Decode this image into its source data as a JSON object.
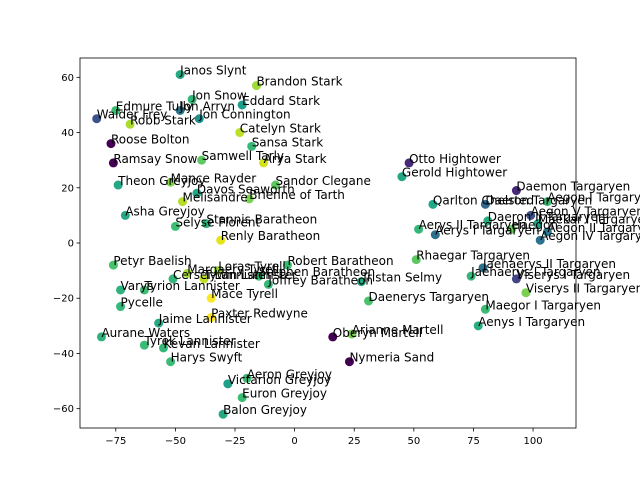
{
  "chart_data": {
    "type": "scatter",
    "title": "",
    "xlabel": "",
    "ylabel": "",
    "xlim": [
      -90,
      118
    ],
    "ylim": [
      -67,
      67
    ],
    "xticks": [
      -75,
      -50,
      -25,
      0,
      25,
      50,
      75,
      100
    ],
    "yticks": [
      -60,
      -40,
      -20,
      0,
      20,
      40,
      60
    ],
    "xtick_labels": [
      "−75",
      "−50",
      "−25",
      "0",
      "25",
      "50",
      "75",
      "100"
    ],
    "ytick_labels": [
      "−60",
      "−40",
      "−20",
      "0",
      "20",
      "40",
      "60"
    ],
    "grid": false,
    "points": [
      {
        "label": "Janos Slynt",
        "x": -48,
        "y": 61,
        "color": "#26a884"
      },
      {
        "label": "Brandon Stark",
        "x": -16,
        "y": 57,
        "color": "#a0da39"
      },
      {
        "label": "Jon Snow",
        "x": -43,
        "y": 52,
        "color": "#35b779"
      },
      {
        "label": "Eddard Stark",
        "x": -22,
        "y": 50,
        "color": "#1f9e89"
      },
      {
        "label": "Edmure Tully",
        "x": -75,
        "y": 48,
        "color": "#3dbc74"
      },
      {
        "label": "Jon Arryn",
        "x": -48,
        "y": 48,
        "color": "#2a788e"
      },
      {
        "label": "Walder Frey",
        "x": -83,
        "y": 45,
        "color": "#3b528b"
      },
      {
        "label": "Jon Connington",
        "x": -40,
        "y": 45,
        "color": "#21918c"
      },
      {
        "label": "Robb Stark",
        "x": -69,
        "y": 43,
        "color": "#addc30"
      },
      {
        "label": "Catelyn Stark",
        "x": -23,
        "y": 40,
        "color": "#bddf26"
      },
      {
        "label": "Roose Bolton",
        "x": -77,
        "y": 36,
        "color": "#440154"
      },
      {
        "label": "Sansa Stark",
        "x": -18,
        "y": 35,
        "color": "#35b779"
      },
      {
        "label": "Samwell Tarly",
        "x": -39,
        "y": 30,
        "color": "#5ec962"
      },
      {
        "label": "Otto Hightower",
        "x": 48,
        "y": 29,
        "color": "#482878"
      },
      {
        "label": "Ramsay Snow",
        "x": -76,
        "y": 29,
        "color": "#440154"
      },
      {
        "label": "Arya Stark",
        "x": -13,
        "y": 29,
        "color": "#d2e21b"
      },
      {
        "label": "Gerold Hightower",
        "x": 45,
        "y": 24,
        "color": "#22a884"
      },
      {
        "label": "Mance Rayder",
        "x": -52,
        "y": 22,
        "color": "#84d44b"
      },
      {
        "label": "Sandor Clegane",
        "x": -8,
        "y": 21,
        "color": "#5ec962"
      },
      {
        "label": "Theon Greyjoy",
        "x": -74,
        "y": 21,
        "color": "#22a884"
      },
      {
        "label": "Daemon Targaryen",
        "x": 93,
        "y": 19,
        "color": "#482878"
      },
      {
        "label": "Davos Seaworth",
        "x": -41,
        "y": 18,
        "color": "#22a884"
      },
      {
        "label": "Melisandre",
        "x": -47,
        "y": 15,
        "color": "#b5de2b"
      },
      {
        "label": "Brienne of Tarth",
        "x": -19,
        "y": 16,
        "color": "#7ad151"
      },
      {
        "label": "Qarlton Chelsted",
        "x": 58,
        "y": 14,
        "color": "#22a884"
      },
      {
        "label": "Daeron Targaryen",
        "x": 80,
        "y": 14,
        "color": "#31688e"
      },
      {
        "label": "Aegon I Targaryen",
        "x": 106,
        "y": 15,
        "color": "#3bbb75"
      },
      {
        "label": "Aegon V Targaryen",
        "x": 99,
        "y": 10,
        "color": "#3b528b"
      },
      {
        "label": "Asha Greyjoy",
        "x": -71,
        "y": 10,
        "color": "#26a884"
      },
      {
        "label": "Stannis Baratheon",
        "x": -37,
        "y": 7,
        "color": "#2fb47c"
      },
      {
        "label": "Daeron II Targaryen",
        "x": 81,
        "y": 8,
        "color": "#27ad81"
      },
      {
        "label": "Aerys II Targaryen",
        "x": 52,
        "y": 5,
        "color": "#35b779"
      },
      {
        "label": "Selyse Florent",
        "x": -50,
        "y": 6,
        "color": "#3dbc74"
      },
      {
        "label": "Maekar I Targaryen",
        "x": 102,
        "y": 7,
        "color": "#20a386"
      },
      {
        "label": "Aerys I Targaryen",
        "x": 59,
        "y": 3,
        "color": "#2d708e"
      },
      {
        "label": "Haegon",
        "x": 91,
        "y": 5,
        "color": "#65cb5e"
      },
      {
        "label": "Aegon II Targaryen",
        "x": 106,
        "y": 4,
        "color": "#2a788e"
      },
      {
        "label": "Aegon IV Targaryen",
        "x": 103,
        "y": 1,
        "color": "#2c728e"
      },
      {
        "label": "Renly Baratheon",
        "x": -31,
        "y": 1,
        "color": "#e5e419"
      },
      {
        "label": "Rhaegar Targaryen",
        "x": 51,
        "y": -6,
        "color": "#5ec962"
      },
      {
        "label": "Jaehaerys II Targaryen",
        "x": 79,
        "y": -9,
        "color": "#2c728e"
      },
      {
        "label": "Petyr Baelish",
        "x": -76,
        "y": -8,
        "color": "#4ac16d"
      },
      {
        "label": "Robert Baratheon",
        "x": -3,
        "y": -8,
        "color": "#3dbc74"
      },
      {
        "label": "Loras Tyrell",
        "x": -32,
        "y": -10,
        "color": "#9fda3a"
      },
      {
        "label": "Margaery Tyrell",
        "x": -45,
        "y": -11,
        "color": "#a5db36"
      },
      {
        "label": "Stephen Baratheon",
        "x": -15,
        "y": -12,
        "color": "#3bbb75"
      },
      {
        "label": "Jaehaerys I Targaryen",
        "x": 74,
        "y": -12,
        "color": "#35b779"
      },
      {
        "label": "Viserys I Targaryen",
        "x": 93,
        "y": -13,
        "color": "#414487"
      },
      {
        "label": "Cersei Lannister",
        "x": -51,
        "y": -13,
        "color": "#35b779"
      },
      {
        "label": "Tywin Lannister",
        "x": -38,
        "y": -13,
        "color": "#bddf26"
      },
      {
        "label": "Joffrey Baratheon",
        "x": -11,
        "y": -15,
        "color": "#35b779"
      },
      {
        "label": "Tristan Selmy",
        "x": 28,
        "y": -14,
        "color": "#26a884"
      },
      {
        "label": "Varys",
        "x": -73,
        "y": -17,
        "color": "#2db27d"
      },
      {
        "label": "Tyrion Lannister",
        "x": -63,
        "y": -17,
        "color": "#3dbc74"
      },
      {
        "label": "Viserys II Targaryen",
        "x": 97,
        "y": -18,
        "color": "#7ad151"
      },
      {
        "label": "Mace Tyrell",
        "x": -35,
        "y": -20,
        "color": "#fde725"
      },
      {
        "label": "Daenerys Targaryen",
        "x": 31,
        "y": -21,
        "color": "#4ac16d"
      },
      {
        "label": "Pycelle",
        "x": -73,
        "y": -23,
        "color": "#35b779"
      },
      {
        "label": "Maegor I Targaryen",
        "x": 80,
        "y": -24,
        "color": "#3bbb75"
      },
      {
        "label": "Paxter Redwyne",
        "x": -35,
        "y": -27,
        "color": "#fde725"
      },
      {
        "label": "Jaime Lannister",
        "x": -57,
        "y": -29,
        "color": "#26a884"
      },
      {
        "label": "Aenys I Targaryen",
        "x": 77,
        "y": -30,
        "color": "#27ad81"
      },
      {
        "label": "Aurane Waters",
        "x": -81,
        "y": -34,
        "color": "#2db27d"
      },
      {
        "label": "Arianne Martell",
        "x": 24,
        "y": -33,
        "color": "#7ad151"
      },
      {
        "label": "Oberyn Martell",
        "x": 16,
        "y": -34,
        "color": "#440154"
      },
      {
        "label": "Tyrek Lannister",
        "x": -63,
        "y": -37,
        "color": "#3bbb75"
      },
      {
        "label": "Kevan Lannister",
        "x": -55,
        "y": -38,
        "color": "#35b779"
      },
      {
        "label": "Harys Swyft",
        "x": -52,
        "y": -43,
        "color": "#3bbb75"
      },
      {
        "label": "Nymeria Sand",
        "x": 23,
        "y": -43,
        "color": "#440154"
      },
      {
        "label": "Aeron Greyjoy",
        "x": -20,
        "y": -49,
        "color": "#3bbb75"
      },
      {
        "label": "Victarion Greyjoy",
        "x": -28,
        "y": -51,
        "color": "#1f9e89"
      },
      {
        "label": "Euron Greyjoy",
        "x": -22,
        "y": -56,
        "color": "#3dbc74"
      },
      {
        "label": "Balon Greyjoy",
        "x": -30,
        "y": -62,
        "color": "#26a884"
      }
    ]
  }
}
